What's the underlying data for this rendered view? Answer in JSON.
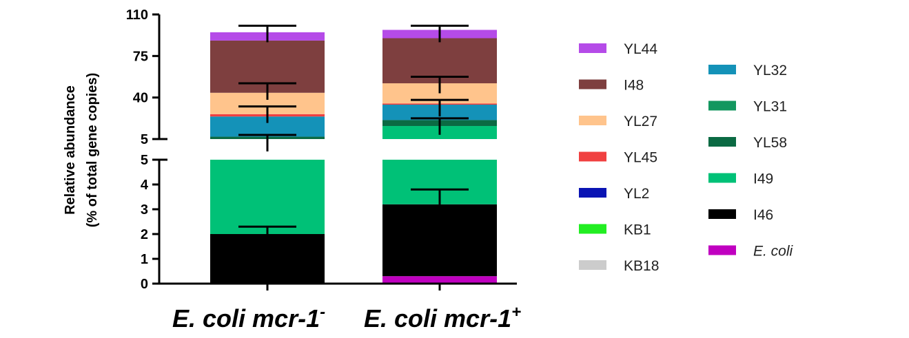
{
  "chart_data": {
    "type": "bar",
    "stacked": true,
    "broken_y_axis": true,
    "ylabel_line1": "Relative abundance",
    "ylabel_line2": "(% of total gene copies)",
    "lower_segment": {
      "ylim": [
        0,
        5
      ],
      "ticks": [
        "0",
        "1",
        "2",
        "3",
        "4",
        "5"
      ]
    },
    "upper_segment": {
      "ylim": [
        5,
        110
      ],
      "ticks": [
        "5",
        "40",
        "75",
        "110"
      ]
    },
    "categories": [
      {
        "base": "E. coli mcr-1",
        "sup": "-"
      },
      {
        "base": "E. coli mcr-1",
        "sup": "+"
      }
    ],
    "series": [
      {
        "name": "E. coli",
        "color": "#c000c0",
        "values": [
          0,
          0.3
        ]
      },
      {
        "name": "I46",
        "color": "#000000",
        "values": [
          2.0,
          2.9
        ]
      },
      {
        "name": "I49",
        "color": "#00c177",
        "values": [
          3.0,
          12.8
        ]
      },
      {
        "name": "YL58",
        "color": "#0b6a43",
        "values": [
          2.0,
          5.0
        ]
      },
      {
        "name": "YL31",
        "color": "#13975f",
        "values": [
          0,
          0
        ]
      },
      {
        "name": "YL32",
        "color": "#1492b8",
        "values": [
          17.0,
          13.0
        ]
      },
      {
        "name": "KB18",
        "color": "#cccccc",
        "values": [
          0,
          0
        ]
      },
      {
        "name": "KB1",
        "color": "#22ee22",
        "values": [
          0,
          0
        ]
      },
      {
        "name": "YL2",
        "color": "#0a14b4",
        "values": [
          0,
          0
        ]
      },
      {
        "name": "YL45",
        "color": "#f04040",
        "values": [
          2.0,
          1.0
        ]
      },
      {
        "name": "YL27",
        "color": "#ffc48c",
        "values": [
          18.0,
          17.0
        ]
      },
      {
        "name": "I48",
        "color": "#7e3f3f",
        "values": [
          44.0,
          38.0
        ]
      },
      {
        "name": "YL44",
        "color": "#b54be8",
        "values": [
          7.0,
          7.0
        ]
      }
    ],
    "error_bars": [
      {
        "category": 0,
        "top": 2.3
      },
      {
        "category": 0,
        "top": 8.5
      },
      {
        "category": 0,
        "top": 32.5
      },
      {
        "category": 0,
        "top": 52.0
      },
      {
        "category": 0,
        "top": 100.5
      },
      {
        "category": 1,
        "top": 3.8
      },
      {
        "category": 1,
        "top": 22.5
      },
      {
        "category": 1,
        "top": 38.0
      },
      {
        "category": 1,
        "top": 57.5
      },
      {
        "category": 1,
        "top": 100.5
      }
    ],
    "legend_col1": [
      "YL44",
      "I48",
      "YL27",
      "YL45",
      "YL2",
      "KB1",
      "KB18"
    ],
    "legend_col2": [
      "YL32",
      "YL31",
      "YL58",
      "I49",
      "I46",
      "E. coli"
    ],
    "legend_italic": [
      "E. coli"
    ],
    "grid": false,
    "legend_position": "right"
  }
}
